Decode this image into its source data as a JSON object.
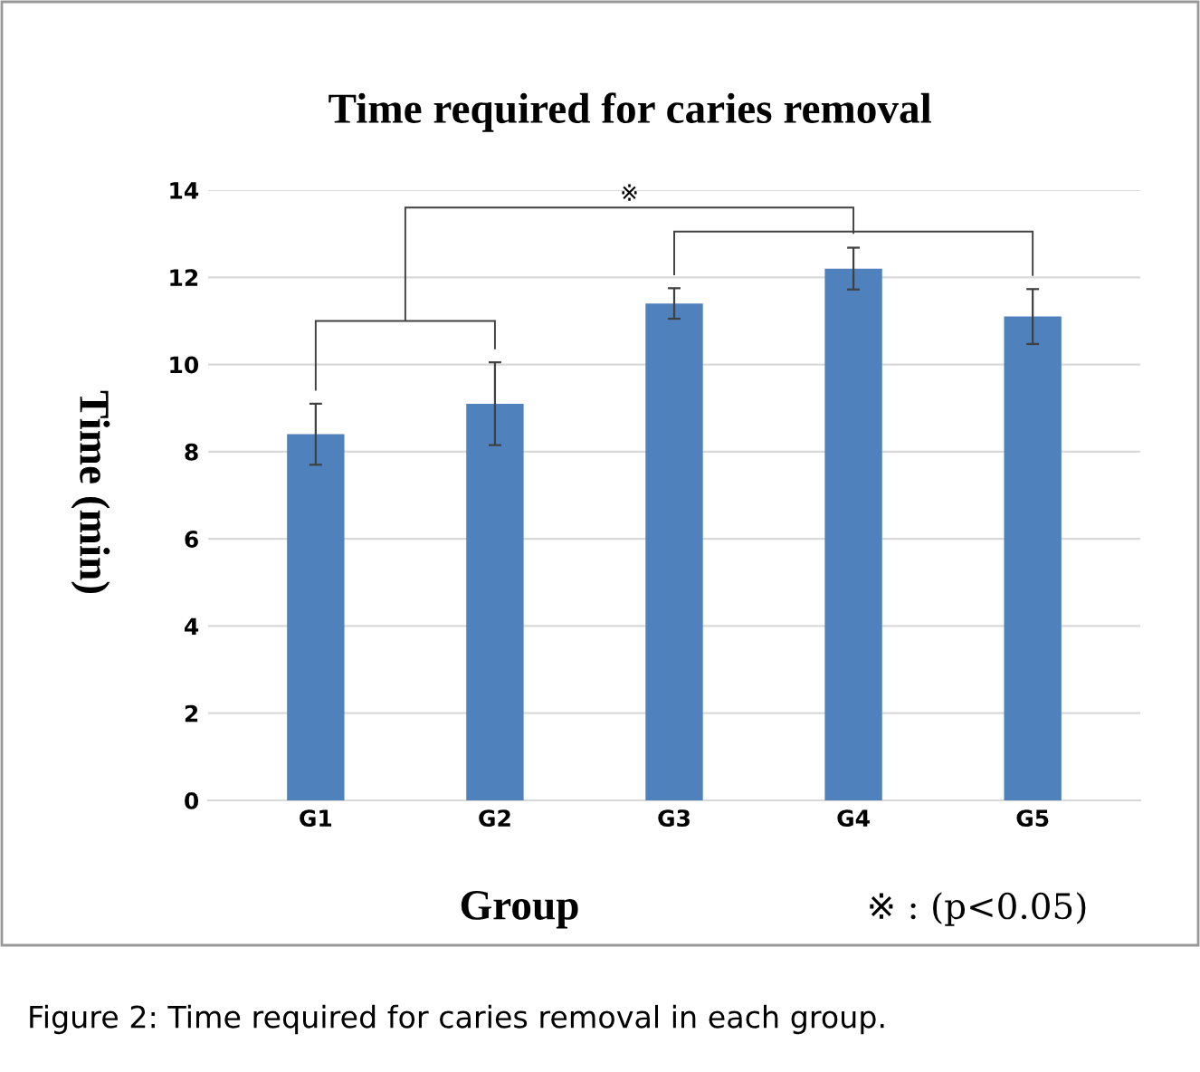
{
  "chart_data": {
    "type": "bar",
    "title": "Time required for caries removal",
    "xlabel": "Group",
    "ylabel": "Time (min)",
    "categories": [
      "G1",
      "G2",
      "G3",
      "G4",
      "G5"
    ],
    "values": [
      8.4,
      9.1,
      11.4,
      12.2,
      11.1
    ],
    "errors": [
      0.7,
      0.95,
      0.35,
      0.48,
      0.63
    ],
    "color": "#4f81bd",
    "ylim": [
      0,
      14
    ],
    "yticks": [
      0,
      2,
      4,
      6,
      8,
      10,
      12,
      14
    ],
    "grid": "y",
    "annotations": [
      "※",
      "※ : (p<0.05)",
      "Figure 2: Time required for caries removal in each group."
    ]
  }
}
